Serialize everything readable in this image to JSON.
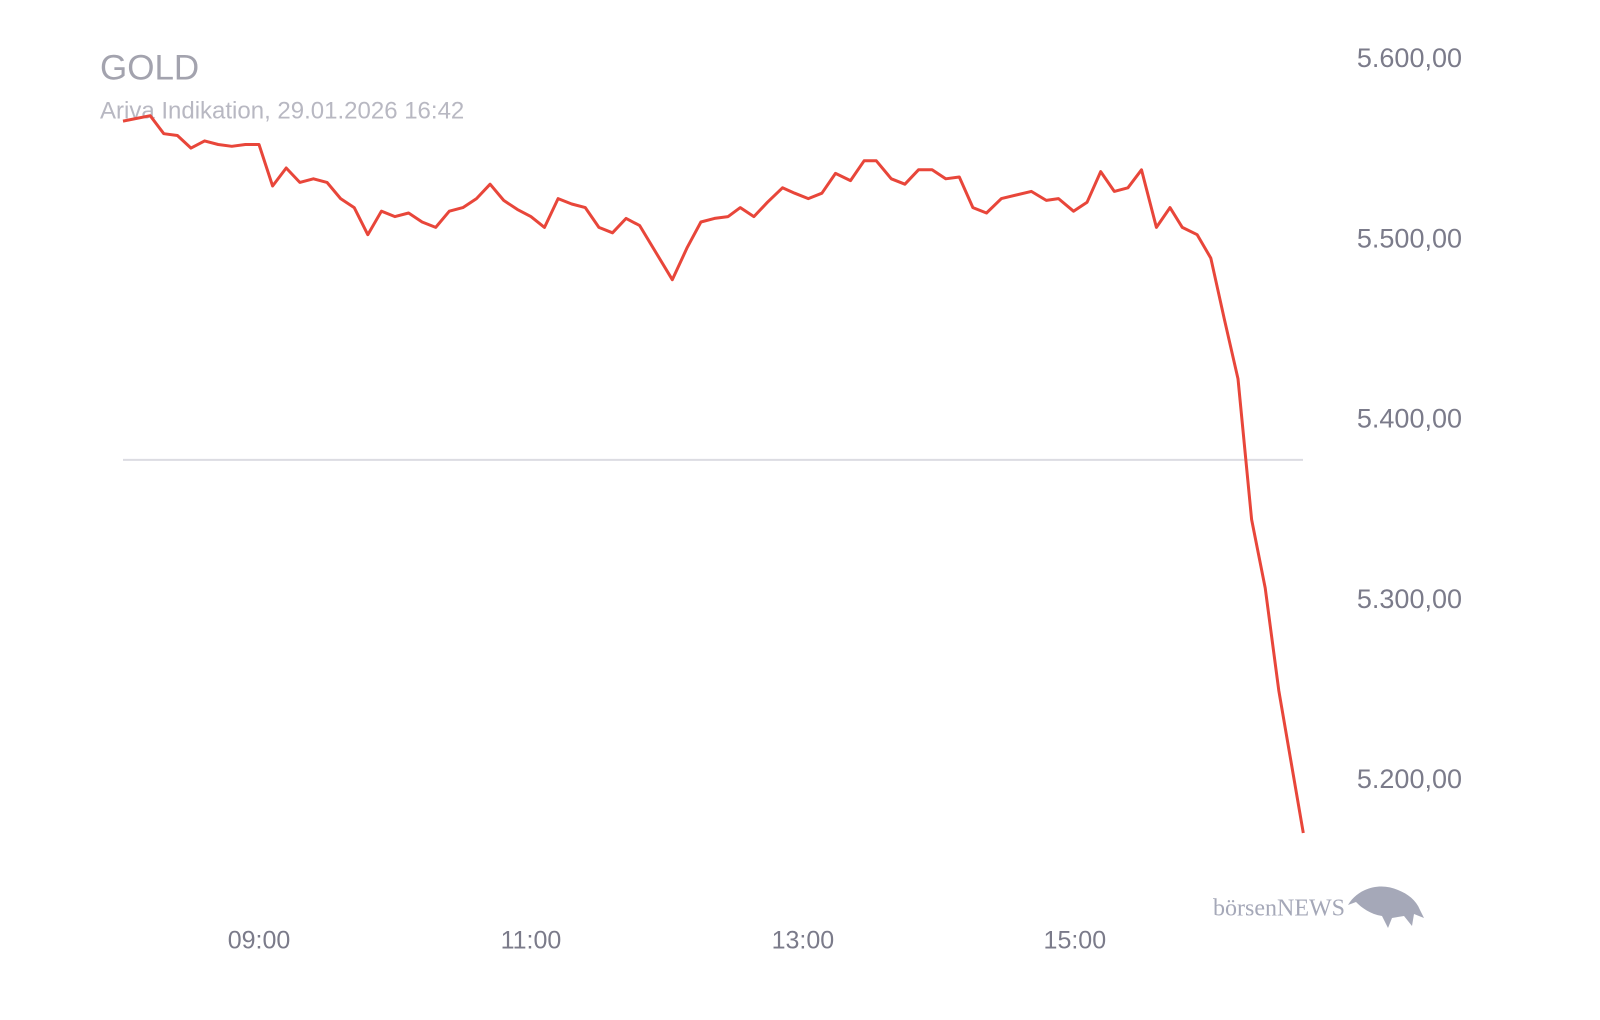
{
  "chart_data": {
    "type": "line",
    "title": "GOLD",
    "subtitle": "Ariva Indikation, 29.01.2026 16:42",
    "watermark": "börsenNEWS",
    "x": [
      8.0,
      8.2,
      8.3,
      8.4,
      8.5,
      8.6,
      8.7,
      8.8,
      8.9,
      9.0,
      9.1,
      9.2,
      9.3,
      9.4,
      9.5,
      9.6,
      9.7,
      9.8,
      9.9,
      10.0,
      10.1,
      10.2,
      10.3,
      10.4,
      10.5,
      10.6,
      10.7,
      10.8,
      10.9,
      11.0,
      11.1,
      11.2,
      11.3,
      11.4,
      11.5,
      11.6,
      11.7,
      11.8,
      12.04,
      12.15,
      12.25,
      12.35,
      12.45,
      12.54,
      12.64,
      12.74,
      12.85,
      12.94,
      13.04,
      13.14,
      13.24,
      13.35,
      13.45,
      13.54,
      13.65,
      13.75,
      13.85,
      13.95,
      14.05,
      14.15,
      14.25,
      14.35,
      14.46,
      14.68,
      14.79,
      14.88,
      14.99,
      15.09,
      15.19,
      15.29,
      15.39,
      15.49,
      15.6,
      15.7,
      15.79,
      15.9,
      16.0,
      16.1,
      16.2,
      16.3,
      16.4,
      16.5,
      16.68
    ],
    "values": [
      5565,
      5568,
      5558,
      5557,
      5550,
      5554,
      5552,
      5551,
      5552,
      5552,
      5529,
      5539,
      5531,
      5533,
      5531,
      5522,
      5517,
      5502,
      5515,
      5512,
      5514,
      5509,
      5506,
      5515,
      5517,
      5522,
      5530,
      5521,
      5516,
      5512,
      5506,
      5522,
      5519,
      5517,
      5506,
      5503,
      5511,
      5507,
      5477,
      5495,
      5509,
      5511,
      5512,
      5517,
      5512,
      5520,
      5528,
      5525,
      5522,
      5525,
      5536,
      5532,
      5543,
      5543,
      5533,
      5530,
      5538,
      5538,
      5533,
      5534,
      5517,
      5514,
      5522,
      5526,
      5521,
      5522,
      5515,
      5520,
      5537,
      5526,
      5528,
      5538,
      5506,
      5517,
      5506,
      5502,
      5489,
      5455,
      5422,
      5344,
      5306,
      5249,
      5170
    ],
    "color": "#e8463a",
    "reference_line": 5377,
    "xlim": [
      8,
      16.7
    ],
    "xticks": [
      {
        "value": 9,
        "label": "09:00"
      },
      {
        "value": 11,
        "label": "11:00"
      },
      {
        "value": 13,
        "label": "13:00"
      },
      {
        "value": 15,
        "label": "15:00"
      }
    ],
    "ylim": [
      5150,
      5620
    ],
    "yticks": [
      {
        "value": 5200,
        "label": "5.200,00"
      },
      {
        "value": 5300,
        "label": "5.300,00"
      },
      {
        "value": 5400,
        "label": "5.400,00"
      },
      {
        "value": 5500,
        "label": "5.500,00"
      },
      {
        "value": 5600,
        "label": "5.600,00"
      }
    ]
  }
}
